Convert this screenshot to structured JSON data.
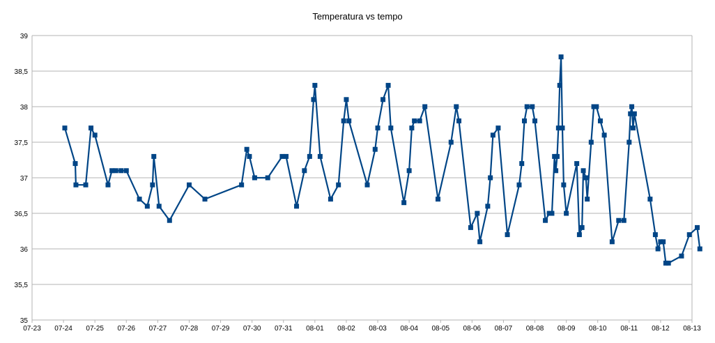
{
  "chart_data": {
    "type": "line",
    "title": "Temperatura vs tempo",
    "xlabel": "",
    "ylabel": "",
    "x_ticks": [
      "07-23",
      "07-24",
      "07-25",
      "07-26",
      "07-27",
      "07-28",
      "07-29",
      "07-30",
      "07-31",
      "08-01",
      "08-02",
      "08-03",
      "08-04",
      "08-05",
      "08-06",
      "08-07",
      "08-08",
      "08-09",
      "08-10",
      "08-11",
      "08-12",
      "08-13"
    ],
    "y_ticks": [
      "35",
      "35,5",
      "36",
      "36,5",
      "37",
      "37,5",
      "38",
      "38,5",
      "39"
    ],
    "xlim": [
      "07-23",
      "08-13"
    ],
    "ylim": [
      35,
      39
    ],
    "grid": "horizontal",
    "legend": "none",
    "series": [
      {
        "color": "#004586",
        "marker": "square",
        "points": [
          [
            "07-24 01:00",
            37.7
          ],
          [
            "07-24 09:00",
            37.2
          ],
          [
            "07-24 09:30",
            36.9
          ],
          [
            "07-24 17:00",
            36.9
          ],
          [
            "07-24 21:00",
            37.7
          ],
          [
            "07-25 00:00",
            37.6
          ],
          [
            "07-25 10:00",
            36.9
          ],
          [
            "07-25 13:00",
            37.1
          ],
          [
            "07-25 16:00",
            37.1
          ],
          [
            "07-25 20:00",
            37.1
          ],
          [
            "07-26 00:00",
            37.1
          ],
          [
            "07-26 10:00",
            36.7
          ],
          [
            "07-26 16:00",
            36.6
          ],
          [
            "07-26 20:00",
            36.9
          ],
          [
            "07-26 21:00",
            37.3
          ],
          [
            "07-27 01:00",
            36.6
          ],
          [
            "07-27 09:00",
            36.4
          ],
          [
            "07-28 00:00",
            36.9
          ],
          [
            "07-28 12:00",
            36.7
          ],
          [
            "07-29 16:00",
            36.9
          ],
          [
            "07-29 20:00",
            37.4
          ],
          [
            "07-29 22:00",
            37.3
          ],
          [
            "07-30 02:00",
            37.0
          ],
          [
            "07-30 12:00",
            37.0
          ],
          [
            "07-30 23:00",
            37.3
          ],
          [
            "07-31 02:00",
            37.3
          ],
          [
            "07-31 10:00",
            36.6
          ],
          [
            "07-31 16:00",
            37.1
          ],
          [
            "07-31 20:00",
            37.3
          ],
          [
            "07-31 23:00",
            38.1
          ],
          [
            "08-01 00:00",
            38.3
          ],
          [
            "08-01 04:00",
            37.3
          ],
          [
            "08-01 12:00",
            36.7
          ],
          [
            "08-01 18:00",
            36.9
          ],
          [
            "08-01 22:00",
            37.8
          ],
          [
            "08-02 00:00",
            38.1
          ],
          [
            "08-02 02:00",
            37.8
          ],
          [
            "08-02 16:00",
            36.9
          ],
          [
            "08-02 22:00",
            37.4
          ],
          [
            "08-03 00:00",
            37.7
          ],
          [
            "08-03 04:00",
            38.1
          ],
          [
            "08-03 08:00",
            38.3
          ],
          [
            "08-03 10:00",
            37.7
          ],
          [
            "08-03 20:00",
            36.65
          ],
          [
            "08-04 00:00",
            37.1
          ],
          [
            "08-04 02:00",
            37.7
          ],
          [
            "08-04 04:00",
            37.8
          ],
          [
            "08-04 08:00",
            37.8
          ],
          [
            "08-04 12:00",
            38.0
          ],
          [
            "08-04 22:00",
            36.7
          ],
          [
            "08-05 08:00",
            37.5
          ],
          [
            "08-05 12:00",
            38.0
          ],
          [
            "08-05 14:00",
            37.8
          ],
          [
            "08-05 23:00",
            36.3
          ],
          [
            "08-06 04:00",
            36.5
          ],
          [
            "08-06 06:00",
            36.1
          ],
          [
            "08-06 12:00",
            36.6
          ],
          [
            "08-06 14:00",
            37.0
          ],
          [
            "08-06 16:00",
            37.6
          ],
          [
            "08-06 20:00",
            37.7
          ],
          [
            "08-07 03:00",
            36.2
          ],
          [
            "08-07 12:00",
            36.9
          ],
          [
            "08-07 14:00",
            37.2
          ],
          [
            "08-07 16:00",
            37.8
          ],
          [
            "08-07 18:00",
            38.0
          ],
          [
            "08-07 22:00",
            38.0
          ],
          [
            "08-08 00:00",
            37.8
          ],
          [
            "08-08 08:00",
            36.4
          ],
          [
            "08-08 11:00",
            36.5
          ],
          [
            "08-08 13:00",
            36.5
          ],
          [
            "08-08 15:00",
            37.3
          ],
          [
            "08-08 16:00",
            37.1
          ],
          [
            "08-08 17:00",
            37.3
          ],
          [
            "08-08 18:00",
            37.7
          ],
          [
            "08-08 19:00",
            38.3
          ],
          [
            "08-08 20:00",
            38.7
          ],
          [
            "08-08 21:00",
            37.7
          ],
          [
            "08-08 22:00",
            36.9
          ],
          [
            "08-09 00:00",
            36.5
          ],
          [
            "08-09 08:00",
            37.2
          ],
          [
            "08-09 10:00",
            36.2
          ],
          [
            "08-09 12:00",
            36.3
          ],
          [
            "08-09 13:00",
            37.1
          ],
          [
            "08-09 15:00",
            37.0
          ],
          [
            "08-09 16:00",
            36.7
          ],
          [
            "08-09 19:00",
            37.5
          ],
          [
            "08-09 21:00",
            38.0
          ],
          [
            "08-09 23:00",
            38.0
          ],
          [
            "08-10 02:00",
            37.8
          ],
          [
            "08-10 05:00",
            37.6
          ],
          [
            "08-10 11:00",
            36.1
          ],
          [
            "08-10 16:00",
            36.4
          ],
          [
            "08-10 20:00",
            36.4
          ],
          [
            "08-11 00:00",
            37.5
          ],
          [
            "08-11 01:00",
            37.9
          ],
          [
            "08-11 02:00",
            38.0
          ],
          [
            "08-11 03:00",
            37.7
          ],
          [
            "08-11 04:00",
            37.9
          ],
          [
            "08-11 16:00",
            36.7
          ],
          [
            "08-11 20:00",
            36.2
          ],
          [
            "08-11 22:00",
            36.0
          ],
          [
            "08-12 00:00",
            36.1
          ],
          [
            "08-12 02:00",
            36.1
          ],
          [
            "08-12 04:00",
            35.8
          ],
          [
            "08-12 06:00",
            35.8
          ],
          [
            "08-12 16:00",
            35.9
          ],
          [
            "08-12 22:00",
            36.2
          ],
          [
            "08-13 04:00",
            36.3
          ],
          [
            "08-13 06:00",
            36.0
          ]
        ]
      }
    ]
  }
}
